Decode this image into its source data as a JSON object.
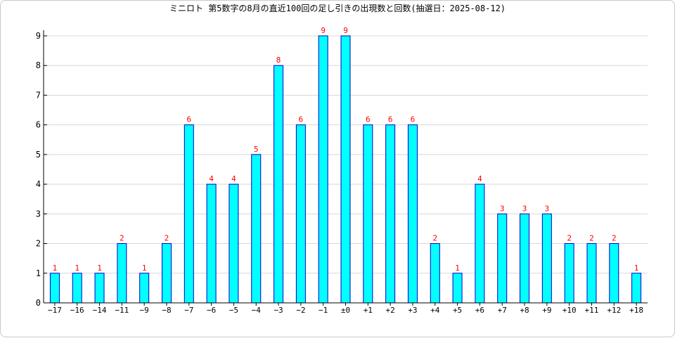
{
  "chart_data": {
    "type": "bar",
    "title": "ミニロト 第5数字の8月の直近100回の足し引きの出現数と回数(抽選日：2025-08-12)",
    "xlabel": "",
    "ylabel": "",
    "ylim": [
      0,
      9
    ],
    "yticks": [
      0,
      1,
      2,
      3,
      4,
      5,
      6,
      7,
      8,
      9
    ],
    "grid": true,
    "legend": "none",
    "categories": [
      "−17",
      "−16",
      "−14",
      "−11",
      "−9",
      "−8",
      "−7",
      "−6",
      "−5",
      "−4",
      "−3",
      "−2",
      "−1",
      "±0",
      "+1",
      "+2",
      "+3",
      "+4",
      "+5",
      "+6",
      "+7",
      "+8",
      "+9",
      "+10",
      "+11",
      "+12",
      "+18"
    ],
    "values": [
      1,
      1,
      1,
      2,
      1,
      2,
      6,
      4,
      4,
      5,
      8,
      6,
      9,
      9,
      6,
      6,
      6,
      2,
      1,
      4,
      3,
      3,
      3,
      2,
      2,
      2,
      1
    ],
    "data_labels": [
      "1",
      "1",
      "1",
      "2",
      "1",
      "2",
      "6",
      "4",
      "4",
      "5",
      "8",
      "6",
      "9",
      "9",
      "6",
      "6",
      "6",
      "2",
      "1",
      "4",
      "3",
      "3",
      "3",
      "2",
      "2",
      "2",
      "1"
    ],
    "colors": {
      "bar_fill": "#00ffff",
      "bar_stroke": "#0000cc",
      "label": "#ff0000",
      "axis": "#000000",
      "grid": "#d8d8d8"
    }
  }
}
